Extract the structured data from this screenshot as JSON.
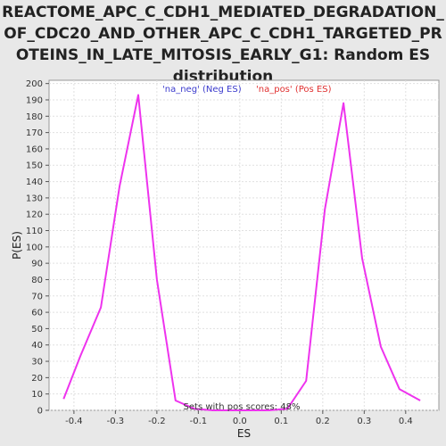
{
  "chart_data": {
    "type": "line",
    "title_lines": [
      "REACTOME_APC_C_CDH1_MEDIATED_DEGRADATION_",
      "OF_CDC20_AND_OTHER_APC_C_CDH1_TARGETED_PR",
      "OTEINS_IN_LATE_MITOSIS_EARLY_G1: Random ES",
      "distribution"
    ],
    "xlabel": "ES",
    "ylabel": "P(ES)",
    "xlim": [
      -0.46,
      0.48
    ],
    "ylim": [
      0,
      202
    ],
    "xticks": [
      -0.4,
      -0.3,
      -0.2,
      -0.1,
      0.0,
      0.1,
      0.2,
      0.3,
      0.4
    ],
    "xtick_labels": [
      "-0.4",
      "-0.3",
      "-0.2",
      "-0.1",
      "0.0",
      "0.1",
      "0.2",
      "0.3",
      "0.4"
    ],
    "yticks": [
      0,
      10,
      20,
      30,
      40,
      50,
      60,
      70,
      80,
      90,
      100,
      110,
      120,
      130,
      140,
      150,
      160,
      170,
      180,
      190,
      200
    ],
    "grid": true,
    "legend": {
      "placement": "top",
      "entries": [
        {
          "label": "'na_neg' (Neg ES)",
          "color": "#3a3acc"
        },
        {
          "label": "'na_pos' (Pos ES)",
          "color": "#e03030"
        }
      ]
    },
    "annotation": "Sets with pos scores: 48%",
    "line_color": "#ee33ee",
    "series": [
      {
        "x": [
          -0.425,
          -0.385,
          -0.335,
          -0.29,
          -0.245,
          -0.2,
          -0.155,
          -0.11,
          -0.065,
          -0.02,
          0.025,
          0.07,
          0.115,
          0.16,
          0.205,
          0.25,
          0.295,
          0.34,
          0.385,
          0.435
        ],
        "y": [
          7,
          33,
          63,
          137,
          193,
          80,
          6,
          1,
          0,
          0,
          0,
          0,
          1,
          18,
          123,
          188,
          93,
          39,
          13,
          6
        ]
      }
    ]
  }
}
